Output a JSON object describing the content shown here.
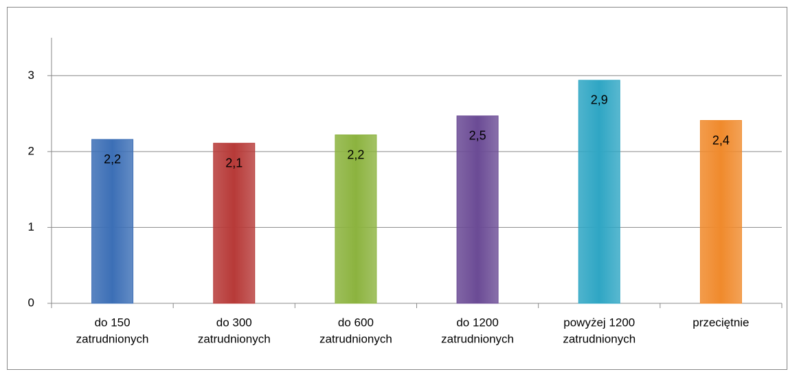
{
  "chart_data": {
    "type": "bar",
    "categories": [
      [
        "do 150",
        "zatrudnionych"
      ],
      [
        "do 300",
        "zatrudnionych"
      ],
      [
        "do 600",
        "zatrudnionych"
      ],
      [
        "do 1200",
        "zatrudnionych"
      ],
      [
        "powyżej 1200",
        "zatrudnionych"
      ],
      [
        "przeciętnie"
      ]
    ],
    "values": [
      2.16,
      2.11,
      2.22,
      2.47,
      2.94,
      2.41
    ],
    "value_labels": [
      "2,2",
      "2,1",
      "2,2",
      "2,5",
      "2,9",
      "2,4"
    ],
    "colors": [
      "#3c6fb6",
      "#b73a38",
      "#8cb33f",
      "#6b4b95",
      "#2fa6c4",
      "#f08a2c"
    ],
    "ylim": [
      0,
      3.5
    ],
    "yticks": [
      0,
      1,
      2,
      3
    ],
    "grid": true
  }
}
